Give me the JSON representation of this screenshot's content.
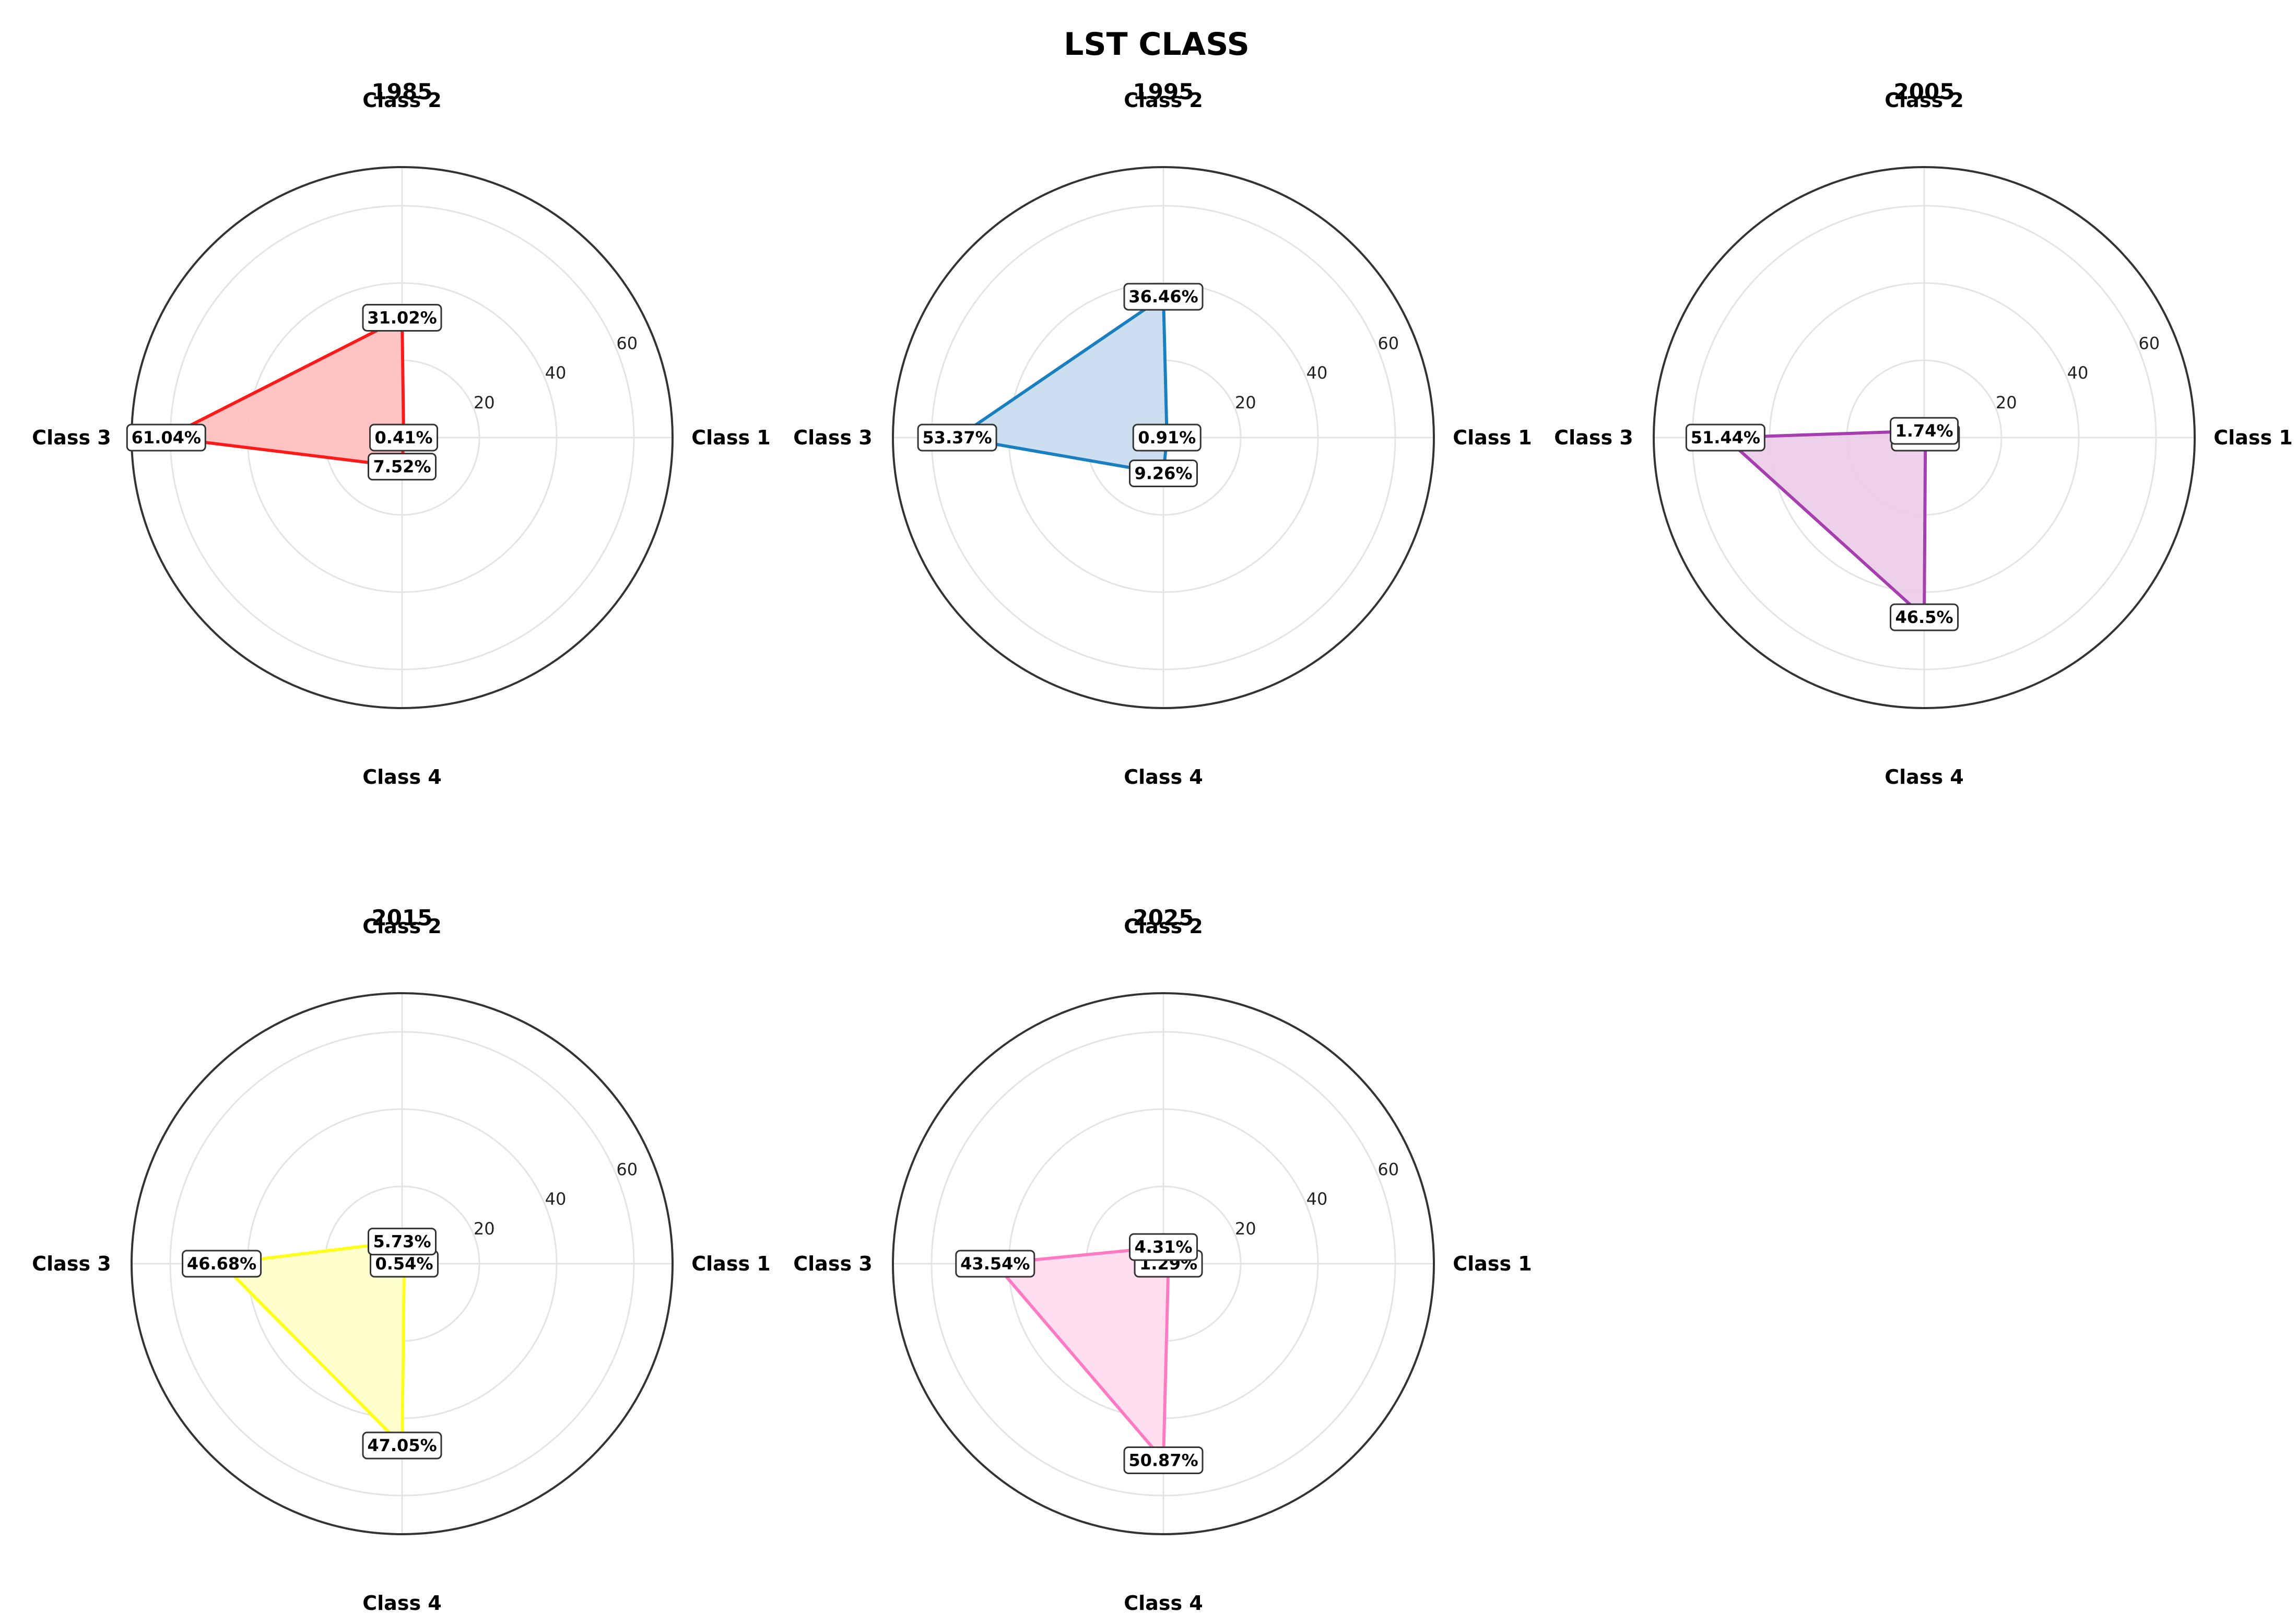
{
  "chart_data": {
    "type": "radar",
    "title": "LST CLASS",
    "axes": [
      "Class 1",
      "Class 2",
      "Class 3",
      "Class 4"
    ],
    "radial_ticks": [
      20,
      40,
      60
    ],
    "rlim": [
      0,
      70
    ],
    "grid": true,
    "panels": [
      {
        "title": "1985",
        "values": [
          0.41,
          31.02,
          61.04,
          7.52
        ],
        "labels": [
          "0.41%",
          "31.02%",
          "61.04%",
          "7.52%"
        ],
        "color": "#ff1a1a",
        "fill": "#ffbdbd"
      },
      {
        "title": "1995",
        "values": [
          0.91,
          36.46,
          53.37,
          9.26
        ],
        "labels": [
          "0.91%",
          "36.46%",
          "53.37%",
          "9.26%"
        ],
        "color": "#1a7fc1",
        "fill": "#c5dcee"
      },
      {
        "title": "2005",
        "values": [
          0.31,
          1.74,
          51.44,
          46.5
        ],
        "labels": [
          "0.31%",
          "1.74%",
          "51.44%",
          "46.5%"
        ],
        "color": "#a63fae",
        "fill": "#ebcbe8"
      },
      {
        "title": "2015",
        "values": [
          0.54,
          5.73,
          46.68,
          47.05
        ],
        "labels": [
          "0.54%",
          "5.73%",
          "46.68%",
          "47.05%"
        ],
        "color": "#ffff1a",
        "fill": "#ffffc8"
      },
      {
        "title": "2025",
        "values": [
          1.29,
          4.31,
          43.54,
          50.87
        ],
        "labels": [
          "1.29%",
          "4.31%",
          "43.54%",
          "50.87%"
        ],
        "color": "#ff7ac3",
        "fill": "#ffdaed"
      }
    ]
  }
}
